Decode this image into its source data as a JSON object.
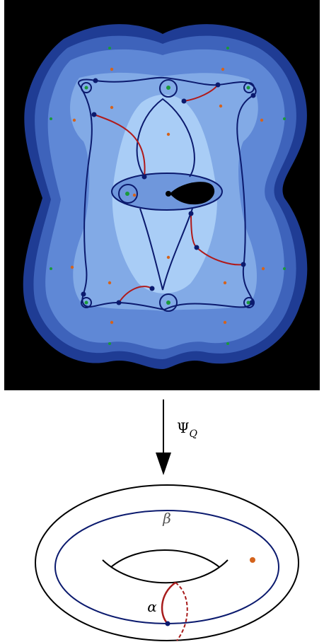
{
  "map_label": {
    "symbol": "Ψ",
    "subscript": "Q"
  },
  "curve_labels": {
    "beta": "β",
    "alpha": "α"
  }
}
